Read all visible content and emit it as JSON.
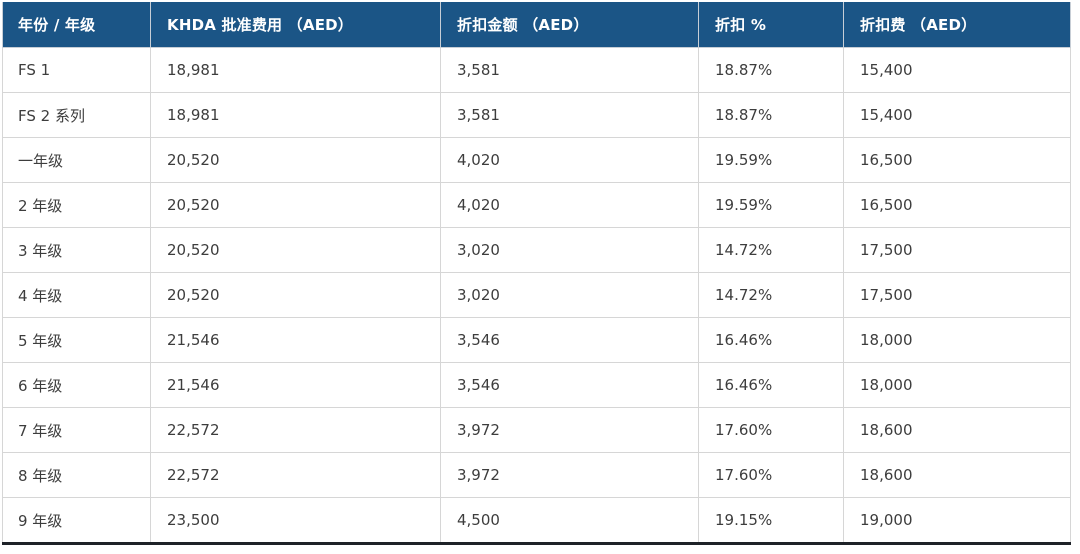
{
  "table": {
    "name": "khda-fees-discount-table",
    "columns": [
      {
        "key": "grade",
        "label": "年份 / 年级"
      },
      {
        "key": "khda_fee",
        "label": "KHDA 批准费用 （AED）"
      },
      {
        "key": "discount_amount",
        "label": "折扣金额 （AED）"
      },
      {
        "key": "discount_pct",
        "label": "折扣 %"
      },
      {
        "key": "discounted_fee",
        "label": "折扣费 （AED）"
      }
    ],
    "rows": [
      {
        "grade": "FS 1",
        "khda_fee": "18,981",
        "discount_amount": "3,581",
        "discount_pct": "18.87%",
        "discounted_fee": "15,400"
      },
      {
        "grade": "FS 2 系列",
        "khda_fee": "18,981",
        "discount_amount": "3,581",
        "discount_pct": "18.87%",
        "discounted_fee": "15,400"
      },
      {
        "grade": "一年级",
        "khda_fee": "20,520",
        "discount_amount": "4,020",
        "discount_pct": "19.59%",
        "discounted_fee": "16,500"
      },
      {
        "grade": "2 年级",
        "khda_fee": "20,520",
        "discount_amount": "4,020",
        "discount_pct": "19.59%",
        "discounted_fee": "16,500"
      },
      {
        "grade": "3 年级",
        "khda_fee": "20,520",
        "discount_amount": "3,020",
        "discount_pct": "14.72%",
        "discounted_fee": "17,500"
      },
      {
        "grade": "4 年级",
        "khda_fee": "20,520",
        "discount_amount": "3,020",
        "discount_pct": "14.72%",
        "discounted_fee": "17,500"
      },
      {
        "grade": "5 年级",
        "khda_fee": "21,546",
        "discount_amount": "3,546",
        "discount_pct": "16.46%",
        "discounted_fee": "18,000"
      },
      {
        "grade": "6 年级",
        "khda_fee": "21,546",
        "discount_amount": "3,546",
        "discount_pct": "16.46%",
        "discounted_fee": "18,000"
      },
      {
        "grade": "7 年级",
        "khda_fee": "22,572",
        "discount_amount": "3,972",
        "discount_pct": "17.60%",
        "discounted_fee": "18,600"
      },
      {
        "grade": "8 年级",
        "khda_fee": "22,572",
        "discount_amount": "3,972",
        "discount_pct": "17.60%",
        "discounted_fee": "18,600"
      },
      {
        "grade": "9 年级",
        "khda_fee": "23,500",
        "discount_amount": "4,500",
        "discount_pct": "19.15%",
        "discounted_fee": "19,000"
      }
    ]
  },
  "colors": {
    "header_bg": "#1b5586",
    "header_text": "#ffffff",
    "body_text": "#3d3d3d",
    "grid_border": "#d6d6d6",
    "bottom_bar": "#1e2228",
    "page_bg": "#ffffff"
  }
}
